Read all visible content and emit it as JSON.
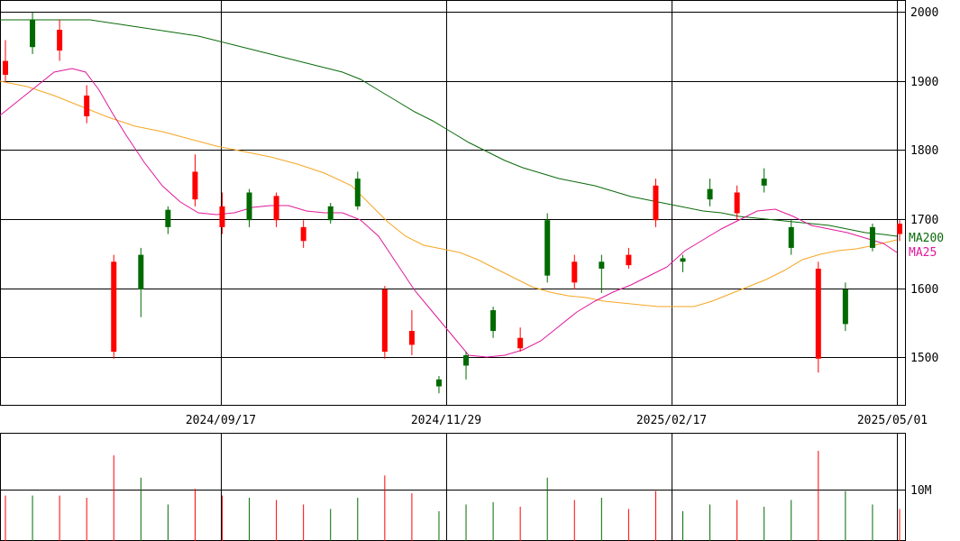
{
  "chart_data": {
    "type": "candlestick",
    "title": "",
    "xlabel": "",
    "ylabel": "",
    "price_axis": {
      "ticks": [
        1500,
        1600,
        1700,
        1800,
        1900,
        2000
      ],
      "ylim": [
        1432,
        2018
      ]
    },
    "volume_axis": {
      "ticks": [
        10000000
      ],
      "tick_labels": [
        "10M"
      ],
      "ylim": [
        0,
        14400000
      ]
    },
    "date_ticks": [
      "2024/09/17",
      "2024/11/29",
      "2025/02/17",
      "2025/05/01"
    ],
    "grid": true,
    "legend": {
      "ma200": {
        "label": "MA200",
        "color": "#0a6a0a"
      },
      "ma25": {
        "label": "MA25",
        "color": "#e0189a"
      }
    },
    "colors": {
      "up": "#006a00",
      "down": "#ff0000",
      "ma75": "#f5a623",
      "ma25": "#e0189a",
      "ma200": "#0a6a0a",
      "grid": "#000000"
    },
    "series_ohlc_sampled": [
      {
        "date": "2024/07",
        "open": 1930,
        "high": 1960,
        "low": 1900,
        "close": 1910
      },
      {
        "date": "2024/07",
        "open": 1950,
        "high": 2000,
        "low": 1940,
        "close": 1990
      },
      {
        "date": "2024/07",
        "open": 1975,
        "high": 1990,
        "low": 1930,
        "close": 1945
      },
      {
        "date": "2024/07",
        "open": 1880,
        "high": 1895,
        "low": 1840,
        "close": 1850
      },
      {
        "date": "2024/08",
        "open": 1640,
        "high": 1650,
        "low": 1500,
        "close": 1510
      },
      {
        "date": "2024/08",
        "open": 1600,
        "high": 1660,
        "low": 1560,
        "close": 1650
      },
      {
        "date": "2024/08",
        "open": 1690,
        "high": 1720,
        "low": 1680,
        "close": 1715
      },
      {
        "date": "2024/09/17",
        "open": 1770,
        "high": 1795,
        "low": 1720,
        "close": 1730
      },
      {
        "date": "2024/09/17",
        "open": 1720,
        "high": 1740,
        "low": 1680,
        "close": 1690
      },
      {
        "date": "2024/10",
        "open": 1700,
        "high": 1745,
        "low": 1690,
        "close": 1740
      },
      {
        "date": "2024/10",
        "open": 1735,
        "high": 1740,
        "low": 1690,
        "close": 1700
      },
      {
        "date": "2024/10",
        "open": 1690,
        "high": 1700,
        "low": 1660,
        "close": 1670
      },
      {
        "date": "2024/10",
        "open": 1700,
        "high": 1725,
        "low": 1695,
        "close": 1720
      },
      {
        "date": "2024/11",
        "open": 1720,
        "high": 1770,
        "low": 1715,
        "close": 1760
      },
      {
        "date": "2024/11",
        "open": 1600,
        "high": 1605,
        "low": 1500,
        "close": 1510
      },
      {
        "date": "2024/11",
        "open": 1540,
        "high": 1570,
        "low": 1505,
        "close": 1520
      },
      {
        "date": "2024/11/29",
        "open": 1460,
        "high": 1475,
        "low": 1450,
        "close": 1470
      },
      {
        "date": "2024/12",
        "open": 1490,
        "high": 1510,
        "low": 1470,
        "close": 1505
      },
      {
        "date": "2024/12",
        "open": 1540,
        "high": 1575,
        "low": 1530,
        "close": 1570
      },
      {
        "date": "2024/12",
        "open": 1530,
        "high": 1545,
        "low": 1510,
        "close": 1515
      },
      {
        "date": "2025/01",
        "open": 1620,
        "high": 1710,
        "low": 1610,
        "close": 1700
      },
      {
        "date": "2025/01",
        "open": 1640,
        "high": 1650,
        "low": 1600,
        "close": 1610
      },
      {
        "date": "2025/01",
        "open": 1630,
        "high": 1650,
        "low": 1595,
        "close": 1640
      },
      {
        "date": "2025/02",
        "open": 1650,
        "high": 1660,
        "low": 1630,
        "close": 1635
      },
      {
        "date": "2025/02/17",
        "open": 1750,
        "high": 1760,
        "low": 1690,
        "close": 1700
      },
      {
        "date": "2025/02/17",
        "open": 1640,
        "high": 1650,
        "low": 1625,
        "close": 1645
      },
      {
        "date": "2025/03",
        "open": 1730,
        "high": 1760,
        "low": 1720,
        "close": 1745
      },
      {
        "date": "2025/03",
        "open": 1740,
        "high": 1750,
        "low": 1700,
        "close": 1710
      },
      {
        "date": "2025/03",
        "open": 1750,
        "high": 1775,
        "low": 1740,
        "close": 1760
      },
      {
        "date": "2025/04",
        "open": 1660,
        "high": 1700,
        "low": 1650,
        "close": 1690
      },
      {
        "date": "2025/04",
        "open": 1630,
        "high": 1640,
        "low": 1480,
        "close": 1500
      },
      {
        "date": "2025/04",
        "open": 1550,
        "high": 1610,
        "low": 1540,
        "close": 1600
      },
      {
        "date": "2025/05/01",
        "open": 1660,
        "high": 1695,
        "low": 1655,
        "close": 1690
      },
      {
        "date": "2025/05",
        "open": 1695,
        "high": 1700,
        "low": 1670,
        "close": 1680
      }
    ]
  }
}
